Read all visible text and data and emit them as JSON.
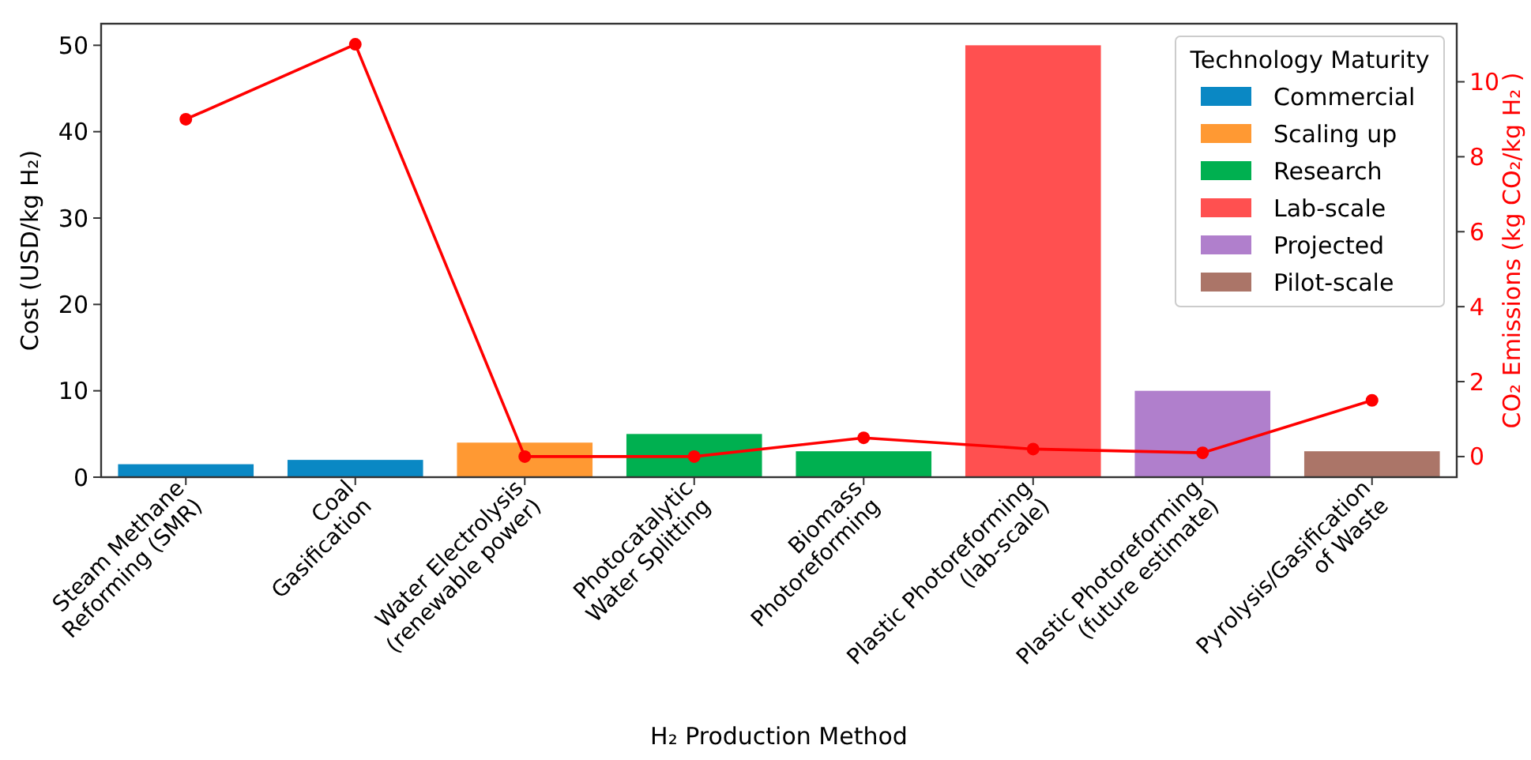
{
  "chart_data": {
    "type": "bar",
    "categories": [
      "Steam Methane\nReforming (SMR)",
      "Coal\nGasification",
      "Water Electrolysis\n(renewable power)",
      "Photocatalytic\nWater Splitting",
      "Biomass\nPhotoreforming",
      "Plastic Photoreforming\n(lab-scale)",
      "Plastic Photoreforming\n(future estimate)",
      "Pyrolysis/Gasification\nof Waste"
    ],
    "series": [
      {
        "name": "Commercial",
        "color": "#0a88c4",
        "values": [
          1.5,
          2,
          null,
          null,
          null,
          null,
          null,
          null
        ]
      },
      {
        "name": "Scaling up",
        "color": "#ff9933",
        "values": [
          null,
          null,
          4,
          null,
          null,
          null,
          null,
          null
        ]
      },
      {
        "name": "Research",
        "color": "#00b050",
        "values": [
          null,
          null,
          null,
          5,
          3,
          null,
          null,
          null
        ]
      },
      {
        "name": "Lab-scale",
        "color": "#ff5050",
        "values": [
          null,
          null,
          null,
          null,
          null,
          50,
          null,
          null
        ]
      },
      {
        "name": "Projected",
        "color": "#b07fcc",
        "values": [
          null,
          null,
          null,
          null,
          null,
          null,
          10,
          null
        ]
      },
      {
        "name": "Pilot-scale",
        "color": "#ab7568",
        "values": [
          null,
          null,
          null,
          null,
          null,
          null,
          null,
          3
        ]
      },
      {
        "type": "line",
        "axis": "y2",
        "color": "#ff0000",
        "marker": "circle",
        "values": [
          9,
          11,
          0,
          0,
          0.5,
          0.2,
          0.1,
          1.5
        ]
      }
    ],
    "xlabel": "H₂ Production Method",
    "ylabel": "Cost (USD/kg H₂)",
    "y2label": "CO₂ Emissions (kg CO₂/kg H₂ )",
    "legend_title": "Technology Maturity",
    "legend": "top right",
    "ylim": [
      0,
      52.5
    ],
    "yticks": [
      0,
      10,
      20,
      30,
      40,
      50
    ],
    "y2lim": [
      -0.55,
      11.55
    ],
    "y2ticks": [
      0,
      2,
      4,
      6,
      8,
      10
    ]
  }
}
